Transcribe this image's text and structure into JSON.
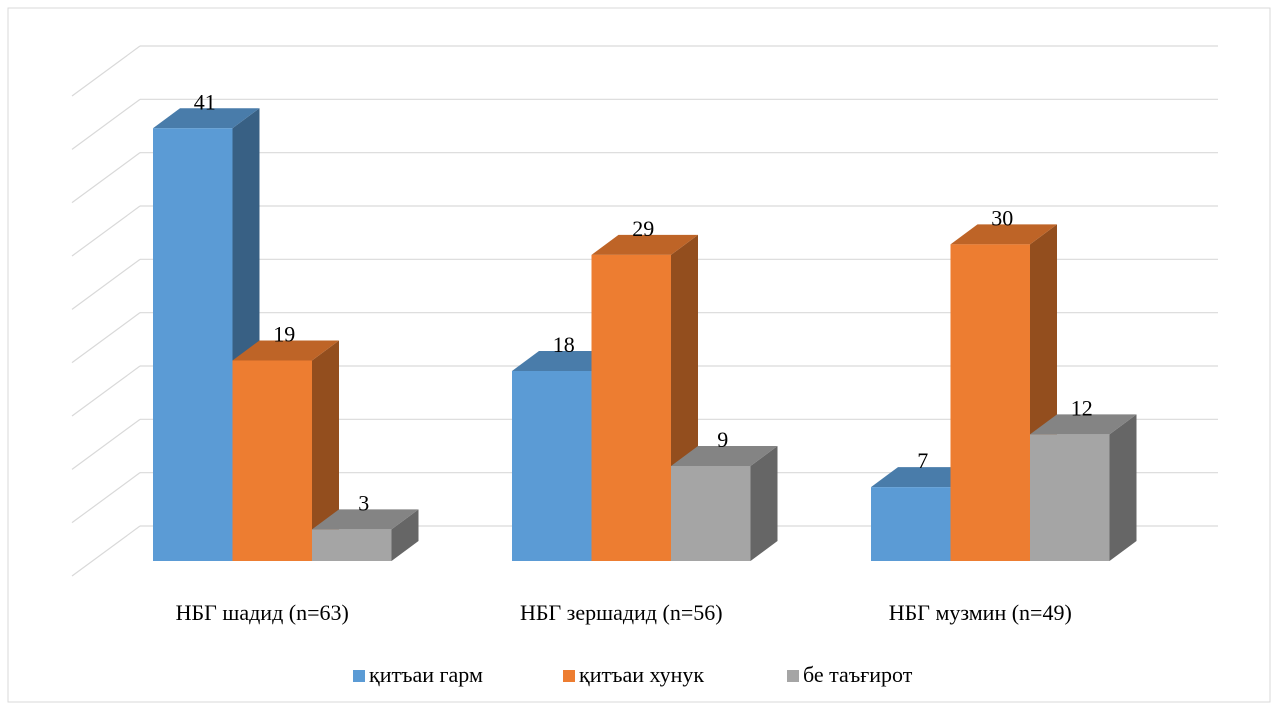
{
  "chart_data": {
    "type": "bar3d",
    "categories": [
      "НБГ шадид (n=63)",
      "НБГ зершадид (n=56)",
      "НБГ музмин (n=49)"
    ],
    "series": [
      {
        "name": "қитъаи гарм",
        "color": "#5b9bd5",
        "values": [
          41,
          18,
          7
        ]
      },
      {
        "name": "қитъаи хунук",
        "color": "#ed7d31",
        "values": [
          19,
          29,
          30
        ]
      },
      {
        "name": "бе таъғирот",
        "color": "#a5a5a5",
        "values": [
          3,
          9,
          12
        ]
      }
    ],
    "ylim": [
      0,
      45
    ],
    "yticks": [
      0,
      5,
      10,
      15,
      20,
      25,
      30,
      35,
      40,
      45
    ],
    "grid": true,
    "legend": "bottom"
  }
}
